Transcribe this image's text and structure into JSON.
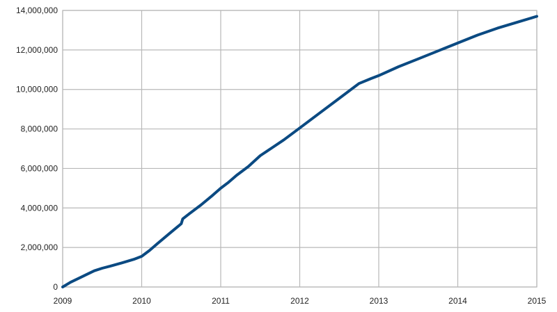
{
  "chart_data": {
    "type": "line",
    "title": "",
    "xlabel": "",
    "ylabel": "",
    "xlim": [
      2009,
      2015
    ],
    "ylim": [
      0,
      14000000
    ],
    "grid": true,
    "legend": "none",
    "x_ticks": [
      2009,
      2010,
      2011,
      2012,
      2013,
      2014,
      2015
    ],
    "x_tick_labels": [
      "2009",
      "2010",
      "2011",
      "2012",
      "2013",
      "2014",
      "2015"
    ],
    "y_ticks": [
      0,
      2000000,
      4000000,
      6000000,
      8000000,
      10000000,
      12000000,
      14000000
    ],
    "y_tick_labels": [
      "0",
      "2,000,000",
      "4,000,000",
      "6,000,000",
      "8,000,000",
      "10,000,000",
      "12,000,000",
      "14,000,000"
    ],
    "colors": {
      "series": "#0b4a82",
      "grid": "#b8b8b8"
    },
    "series": [
      {
        "x": [
          2009.0,
          2009.1,
          2009.25,
          2009.4,
          2009.5,
          2009.6,
          2009.75,
          2009.9,
          2010.0,
          2010.1,
          2010.2,
          2010.35,
          2010.5,
          2010.52,
          2010.6,
          2010.75,
          2010.9,
          2011.0,
          2011.1,
          2011.2,
          2011.35,
          2011.5,
          2011.65,
          2011.8,
          2012.0,
          2012.25,
          2012.5,
          2012.75,
          2012.9,
          2013.0,
          2013.25,
          2013.5,
          2013.75,
          2014.0,
          2014.25,
          2014.5,
          2014.75,
          2015.0
        ],
        "y": [
          0,
          240000,
          530000,
          820000,
          950000,
          1050000,
          1220000,
          1400000,
          1550000,
          1850000,
          2200000,
          2700000,
          3200000,
          3450000,
          3700000,
          4150000,
          4650000,
          5000000,
          5300000,
          5650000,
          6100000,
          6650000,
          7050000,
          7450000,
          8050000,
          8800000,
          9550000,
          10300000,
          10550000,
          10700000,
          11150000,
          11550000,
          11950000,
          12350000,
          12750000,
          13100000,
          13400000,
          13700000
        ]
      }
    ]
  }
}
